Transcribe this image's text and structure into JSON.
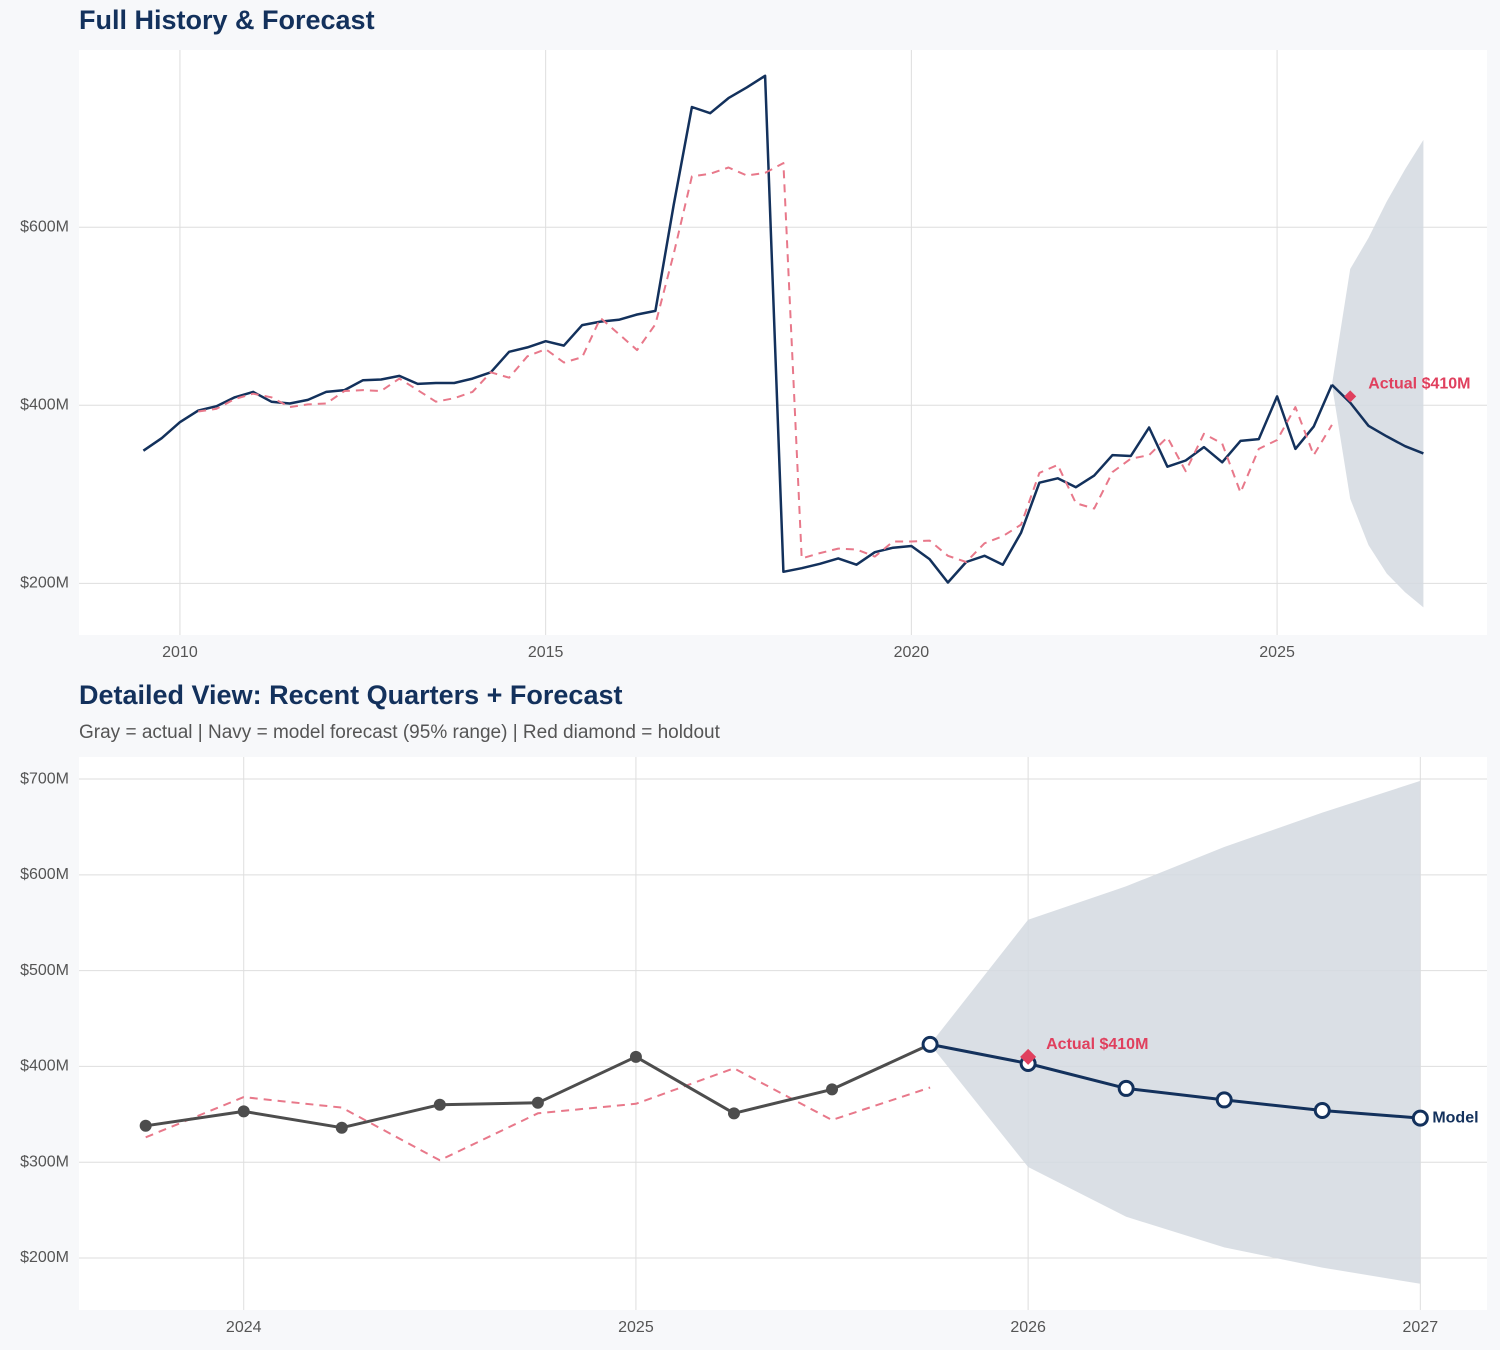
{
  "chart_data": [
    {
      "type": "line",
      "title": "Full History & Forecast",
      "xlim": [
        2008.62,
        2027.87
      ],
      "xticks": [
        2010,
        2015,
        2020,
        2025
      ],
      "ylim": [
        142,
        799
      ],
      "yticks": [
        {
          "value": 200,
          "label": "$200M"
        },
        {
          "value": 400,
          "label": "$400M"
        },
        {
          "value": 600,
          "label": "$600M"
        }
      ],
      "grid": true,
      "band": {
        "color": "#d3d9e0",
        "x": [
          2025.75,
          2026,
          2026.25,
          2026.5,
          2026.75,
          2027
        ],
        "lower": [
          423,
          295,
          243,
          211,
          190,
          173
        ],
        "upper": [
          423,
          553,
          588,
          629,
          665,
          698
        ]
      },
      "series": [
        {
          "color": "#13315c",
          "dash": false,
          "marker": null,
          "x": [
            2009.5,
            2009.75,
            2010,
            2010.25,
            2010.5,
            2010.75,
            2011,
            2011.25,
            2011.5,
            2011.75,
            2012,
            2012.25,
            2012.5,
            2012.75,
            2013,
            2013.25,
            2013.5,
            2013.75,
            2014,
            2014.25,
            2014.5,
            2014.75,
            2015,
            2015.25,
            2015.5,
            2015.75,
            2016,
            2016.25,
            2016.5,
            2016.75,
            2017,
            2017.25,
            2017.5,
            2017.75,
            2018,
            2018.25,
            2018.5,
            2018.75,
            2019,
            2019.25,
            2019.5,
            2019.75,
            2020,
            2020.25,
            2020.5,
            2020.75,
            2021,
            2021.25,
            2021.5,
            2021.75,
            2022,
            2022.25,
            2022.5,
            2022.75,
            2023,
            2023.25,
            2023.5,
            2023.75,
            2024,
            2024.25,
            2024.5,
            2024.75,
            2025,
            2025.25,
            2025.5,
            2025.75
          ],
          "values": [
            349,
            363,
            381,
            394,
            399,
            409,
            415,
            404,
            402,
            406,
            415,
            417,
            428,
            429,
            433,
            424,
            425,
            425,
            430,
            437,
            460,
            465,
            472,
            467,
            490,
            494,
            496,
            502,
            506,
            625,
            735,
            728,
            745,
            757,
            770,
            213,
            217,
            222,
            228,
            221,
            235,
            240,
            242,
            227,
            201,
            224,
            231,
            221,
            257,
            313,
            318,
            308,
            321,
            344,
            343,
            375,
            331,
            338,
            353,
            336,
            360,
            362,
            410,
            351,
            376,
            423
          ]
        },
        {
          "color": "#e8788a",
          "dash": true,
          "marker": null,
          "x": [
            2010.25,
            2010.5,
            2010.75,
            2011,
            2011.25,
            2011.5,
            2011.75,
            2012,
            2012.25,
            2012.5,
            2012.75,
            2013,
            2013.25,
            2013.5,
            2013.75,
            2014,
            2014.25,
            2014.5,
            2014.75,
            2015,
            2015.25,
            2015.5,
            2015.75,
            2016,
            2016.25,
            2016.5,
            2016.75,
            2017,
            2017.25,
            2017.5,
            2017.75,
            2018,
            2018.25,
            2018.5,
            2018.75,
            2019,
            2019.25,
            2019.5,
            2019.75,
            2020,
            2020.25,
            2020.5,
            2020.75,
            2021,
            2021.25,
            2021.5,
            2021.75,
            2022,
            2022.25,
            2022.5,
            2022.75,
            2023,
            2023.25,
            2023.5,
            2023.75,
            2024,
            2024.25,
            2024.5,
            2024.75,
            2025,
            2025.25,
            2025.5,
            2025.75
          ],
          "values": [
            393,
            396,
            407,
            413,
            409,
            398,
            401,
            402,
            416,
            417,
            416,
            430,
            417,
            404,
            408,
            415,
            437,
            431,
            455,
            463,
            448,
            454,
            498,
            480,
            462,
            491,
            570,
            657,
            660,
            667,
            658,
            661,
            672,
            228,
            234,
            239,
            238,
            230,
            247,
            247,
            248,
            231,
            224,
            245,
            253,
            266,
            324,
            333,
            290,
            284,
            325,
            340,
            344,
            364,
            326,
            368,
            357,
            302,
            351,
            361,
            398,
            344,
            378
          ]
        },
        {
          "color": "#13315c",
          "dash": false,
          "marker": null,
          "x": [
            2025.75,
            2026,
            2026.25,
            2026.5,
            2026.75,
            2027
          ],
          "values": [
            423,
            403,
            377,
            365,
            354,
            346
          ]
        }
      ],
      "holdout": {
        "x": 2026,
        "value": 410,
        "color": "#e0405e",
        "label": "Actual $410M"
      }
    },
    {
      "type": "line",
      "title": "Detailed View: Recent Quarters + Forecast",
      "subtitle": "Gray = actual  |  Navy = model forecast (95% range)  |  Red diamond = holdout",
      "xlim": [
        2023.58,
        2027.17
      ],
      "xticks": [
        2024,
        2025,
        2026,
        2027
      ],
      "ylim": [
        145.7,
        723
      ],
      "yticks": [
        {
          "value": 200,
          "label": "$200M"
        },
        {
          "value": 300,
          "label": "$300M"
        },
        {
          "value": 400,
          "label": "$400M"
        },
        {
          "value": 500,
          "label": "$500M"
        },
        {
          "value": 600,
          "label": "$600M"
        },
        {
          "value": 700,
          "label": "$700M"
        }
      ],
      "grid": true,
      "band": {
        "color": "#d3d9e0",
        "x": [
          2025.75,
          2026,
          2026.25,
          2026.5,
          2026.75,
          2027
        ],
        "lower": [
          423,
          295,
          243,
          211,
          190,
          173
        ],
        "upper": [
          423,
          553,
          588,
          629,
          665,
          698
        ]
      },
      "series": [
        {
          "color": "#e8788a",
          "dash": true,
          "marker": null,
          "x": [
            2023.75,
            2024,
            2024.25,
            2024.5,
            2024.75,
            2025,
            2025.25,
            2025.5,
            2025.75
          ],
          "values": [
            326,
            368,
            357,
            302,
            351,
            361,
            398,
            344,
            378
          ]
        },
        {
          "color": "#4d4d4d",
          "dash": false,
          "marker": "filled",
          "x": [
            2023.75,
            2024,
            2024.25,
            2024.5,
            2024.75,
            2025,
            2025.25,
            2025.5,
            2025.75
          ],
          "values": [
            338,
            353,
            336,
            360,
            362,
            410,
            351,
            376,
            423
          ]
        },
        {
          "name": "Model",
          "color": "#13315c",
          "dash": false,
          "marker": "open",
          "x": [
            2025.75,
            2026,
            2026.25,
            2026.5,
            2026.75,
            2027
          ],
          "values": [
            423,
            403,
            377,
            365,
            354,
            346
          ]
        }
      ],
      "holdout": {
        "x": 2026,
        "value": 410,
        "color": "#e0405e",
        "label": "Actual $410M"
      }
    }
  ]
}
